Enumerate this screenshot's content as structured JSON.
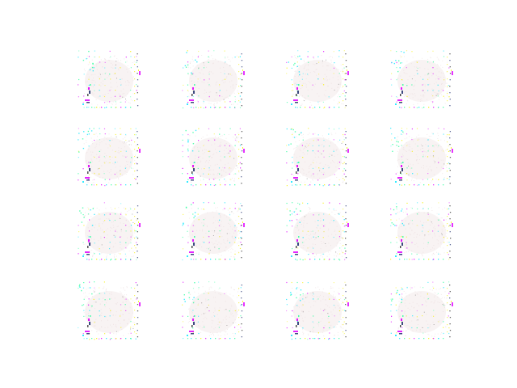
{
  "figure": {
    "rows": 4,
    "cols": 4,
    "background": "#ffffff",
    "description_colors": {
      "haze": "#f3e9ea",
      "cyan": "#00e5ff",
      "green": "#24ff9a",
      "yellow": "#f5f000",
      "magenta": "#e000ff",
      "navy": "#1b2a6b",
      "dark": "#202020"
    }
  }
}
